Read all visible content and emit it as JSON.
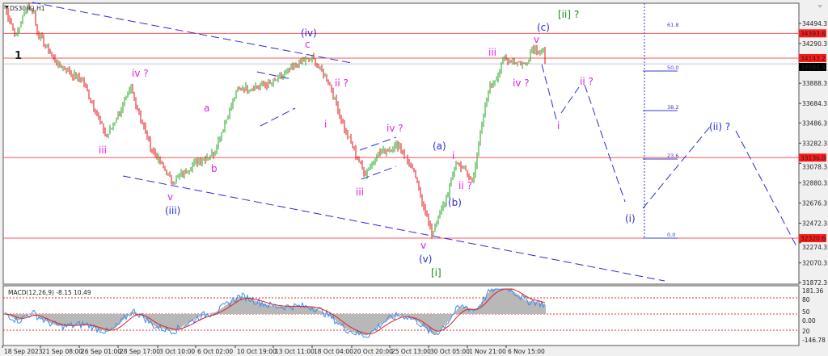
{
  "symbol_label": "DS30(€),H1",
  "colors": {
    "bull": "#1fa51f",
    "bear": "#e01010",
    "level": "#ff5555",
    "wave_blue": "#2b2bd8",
    "wave_magenta": "#e21fe2",
    "wave_green": "#168a16",
    "wave_black": "#222222",
    "fib": "#3a3ad0",
    "macd_line": "#3a8ef0",
    "signal_line": "#e02020",
    "hist": "#b8b8b8"
  },
  "price_axis": {
    "ticks": [
      "34494.3",
      "34290.3",
      "33888.3",
      "33684.3",
      "33486.3",
      "33282.3",
      "33078.3",
      "32880.3",
      "32676.3",
      "32472.3",
      "32274.3",
      "32070.3",
      "31872.3"
    ],
    "range": [
      31872.3,
      34494.3
    ]
  },
  "levels": [
    {
      "price": 34393.6,
      "label": "34393.6"
    },
    {
      "price": 34143.2,
      "label": "34143.2"
    },
    {
      "price": 33136.0,
      "label": "33136.0"
    },
    {
      "price": 32320.6,
      "label": "32320.6"
    }
  ],
  "current_price": {
    "price": 34084.8,
    "label": "34084.8"
  },
  "fib_levels": [
    {
      "label": "61.8"
    },
    {
      "label": "50.0"
    },
    {
      "label": "38.2"
    },
    {
      "label": "23.6"
    },
    {
      "label": "0.0"
    }
  ],
  "time_axis": [
    "18 Sep 2023",
    "21 Sep 08:00",
    "26 Sep 01:00",
    "28 Sep 17:00",
    "3 Oct 10:00",
    "6 Oct 02:00",
    "10 Oct 19:00",
    "13 Oct 11:00",
    "18 Oct 04:00",
    "20 Oct 20:00",
    "25 Oct 13:00",
    "30 Oct 05:00",
    "1 Nov 21:00",
    "6 Nov 15:00"
  ],
  "price_path": [
    [
      0,
      34650
    ],
    [
      14,
      34364
    ],
    [
      27,
      34666
    ],
    [
      34,
      34609
    ],
    [
      37,
      34404
    ],
    [
      62,
      34078
    ],
    [
      92,
      33914
    ],
    [
      122,
      33342
    ],
    [
      152,
      33833
    ],
    [
      177,
      33220
    ],
    [
      202,
      32893
    ],
    [
      232,
      33097
    ],
    [
      252,
      33179
    ],
    [
      282,
      33833
    ],
    [
      322,
      33873
    ],
    [
      357,
      34094
    ],
    [
      372,
      34143
    ],
    [
      392,
      33914
    ],
    [
      402,
      33669
    ],
    [
      412,
      33424
    ],
    [
      437,
      32975
    ],
    [
      452,
      33179
    ],
    [
      477,
      33261
    ],
    [
      497,
      32934
    ],
    [
      517,
      32362
    ],
    [
      537,
      32771
    ],
    [
      547,
      33097
    ],
    [
      557,
      33016
    ],
    [
      567,
      32893
    ],
    [
      587,
      33833
    ],
    [
      597,
      33955
    ],
    [
      607,
      34143
    ],
    [
      632,
      34078
    ],
    [
      640,
      34241
    ],
    [
      654,
      34225
    ],
    [
      657,
      34012
    ]
  ],
  "macd": {
    "label": "MACD(12,26,9) -8.15 10.49",
    "ticks": [
      "181.36",
      "80",
      "50",
      "0.00",
      "20",
      "-146.78"
    ]
  },
  "wave_labels": {
    "one": "1",
    "iii_1": "iii",
    "iv_q_1": "iv ?",
    "p_iii": "(iii)",
    "v_1": "v",
    "a": "a",
    "b": "b",
    "p_iv": "(iv)",
    "c": "c",
    "ii_q_1": "ii ?",
    "i_1": "i",
    "iv_q_2": "iv ?",
    "iii_2": "iii",
    "p_a": "(a)",
    "i_2": "i",
    "ii_q_2": "ii ?",
    "p_b": "(b)",
    "v_2": "v",
    "p_v": "(v)",
    "br_i": "[i]",
    "iii_3": "iii",
    "iv_q_3": "iv ?",
    "v_3": "v",
    "p_c": "(c)",
    "br_ii_q": "[ii] ?",
    "ii_q_3": "ii ?",
    "i_3": "i",
    "p_i": "(i)",
    "p_ii_q": "(ii) ?"
  }
}
